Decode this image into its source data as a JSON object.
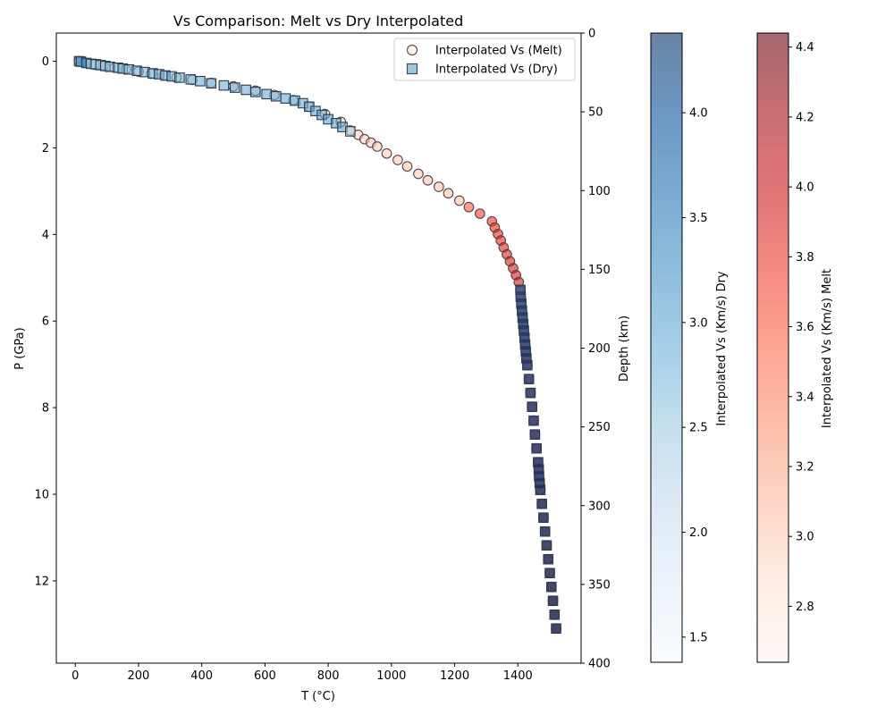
{
  "chart_data": {
    "type": "scatter",
    "title": "Vs Comparison: Melt vs Dry Interpolated",
    "xlabel": "T (°C)",
    "ylabel": "P (GPa)",
    "y2label": "Depth (km)",
    "xlim": [
      -60,
      1600
    ],
    "ylim": [
      13.9,
      -0.65
    ],
    "y2lim": [
      400,
      0
    ],
    "y2_per_y": 28.6,
    "xticks": [
      "0",
      "200",
      "400",
      "600",
      "800",
      "1000",
      "1200",
      "1400"
    ],
    "yticks": [
      "0",
      "2",
      "4",
      "6",
      "8",
      "10",
      "12"
    ],
    "y2ticks": [
      "0",
      "50",
      "100",
      "150",
      "200",
      "250",
      "300",
      "350",
      "400"
    ],
    "legend": {
      "position": "upper right",
      "entries": [
        "Interpolated Vs (Melt)",
        "Interpolated Vs (Dry)"
      ]
    },
    "colorbars": [
      {
        "label": "Interpolated Vs (Km/s) Dry",
        "colormap": "Blues",
        "range": [
          1.38,
          4.38
        ],
        "ticks": [
          "1.5",
          "2.0",
          "2.5",
          "3.0",
          "3.5",
          "4.0"
        ]
      },
      {
        "label": "Interpolated Vs (Km/s) Melt",
        "colormap": "Reds",
        "range": [
          2.64,
          4.44
        ],
        "ticks": [
          "2.8",
          "3.0",
          "3.2",
          "3.4",
          "3.6",
          "3.8",
          "4.0",
          "4.2",
          "4.4"
        ]
      }
    ],
    "series": [
      {
        "name": "Interpolated Vs (Melt)",
        "marker": "circle",
        "points": [
          [
            12,
            0.0,
            2.64
          ],
          [
            35,
            0.04,
            2.66
          ],
          [
            60,
            0.08,
            2.68
          ],
          [
            90,
            0.11,
            2.7
          ],
          [
            125,
            0.15,
            2.72
          ],
          [
            160,
            0.19,
            2.74
          ],
          [
            200,
            0.24,
            2.76
          ],
          [
            240,
            0.29,
            2.78
          ],
          [
            280,
            0.33,
            2.79
          ],
          [
            320,
            0.38,
            2.8
          ],
          [
            370,
            0.43,
            2.82
          ],
          [
            430,
            0.5,
            2.83
          ],
          [
            500,
            0.58,
            2.85
          ],
          [
            570,
            0.68,
            2.86
          ],
          [
            630,
            0.78,
            2.87
          ],
          [
            690,
            0.9,
            2.88
          ],
          [
            740,
            1.05,
            2.89
          ],
          [
            790,
            1.22,
            2.9
          ],
          [
            840,
            1.4,
            2.91
          ],
          [
            870,
            1.6,
            2.92
          ],
          [
            895,
            1.7,
            2.93
          ],
          [
            915,
            1.8,
            2.94
          ],
          [
            935,
            1.88,
            2.95
          ],
          [
            955,
            1.97,
            2.96
          ],
          [
            985,
            2.13,
            2.97
          ],
          [
            1020,
            2.28,
            2.98
          ],
          [
            1050,
            2.43,
            2.99
          ],
          [
            1085,
            2.6,
            3.0
          ],
          [
            1115,
            2.75,
            3.01
          ],
          [
            1150,
            2.9,
            3.02
          ],
          [
            1180,
            3.05,
            3.03
          ],
          [
            1215,
            3.22,
            3.05
          ],
          [
            1245,
            3.37,
            3.6
          ],
          [
            1280,
            3.52,
            3.75
          ],
          [
            1318,
            3.7,
            3.8
          ],
          [
            1327,
            3.84,
            3.82
          ],
          [
            1337,
            3.99,
            3.84
          ],
          [
            1346,
            4.14,
            3.86
          ],
          [
            1355,
            4.3,
            3.88
          ],
          [
            1365,
            4.46,
            3.9
          ],
          [
            1375,
            4.62,
            3.92
          ],
          [
            1385,
            4.78,
            3.94
          ],
          [
            1394,
            4.94,
            3.96
          ],
          [
            1403,
            5.1,
            3.98
          ],
          [
            1408,
            5.28,
            4.1
          ],
          [
            1409,
            5.44,
            4.12
          ],
          [
            1411,
            5.6,
            4.14
          ],
          [
            1413,
            5.76,
            4.16
          ],
          [
            1415,
            5.92,
            4.18
          ],
          [
            1417,
            6.07,
            4.2
          ],
          [
            1419,
            6.22,
            4.22
          ],
          [
            1421,
            6.38,
            4.24
          ],
          [
            1423,
            6.54,
            4.25
          ],
          [
            1425,
            6.7,
            4.26
          ],
          [
            1427,
            6.86,
            4.27
          ],
          [
            1430,
            7.02,
            4.28
          ],
          [
            1435,
            7.34,
            4.3
          ],
          [
            1440,
            7.66,
            4.31
          ],
          [
            1445,
            7.98,
            4.32
          ],
          [
            1450,
            8.3,
            4.33
          ],
          [
            1454,
            8.62,
            4.34
          ],
          [
            1459,
            8.94,
            4.35
          ],
          [
            1464,
            9.26,
            4.36
          ],
          [
            1466,
            9.42,
            4.36
          ],
          [
            1467,
            9.58,
            4.37
          ],
          [
            1469,
            9.74,
            4.37
          ],
          [
            1471,
            9.9,
            4.38
          ],
          [
            1476,
            10.22,
            4.39
          ],
          [
            1481,
            10.54,
            4.4
          ],
          [
            1486,
            10.86,
            4.4
          ],
          [
            1491,
            11.18,
            4.41
          ],
          [
            1496,
            11.5,
            4.41
          ],
          [
            1501,
            11.82,
            4.42
          ],
          [
            1506,
            12.14,
            4.42
          ],
          [
            1511,
            12.46,
            4.43
          ],
          [
            1516,
            12.78,
            4.43
          ],
          [
            1521,
            13.1,
            4.44
          ]
        ]
      },
      {
        "name": "Interpolated Vs (Dry)",
        "marker": "square",
        "points": [
          [
            12,
            0.0,
            3.35
          ],
          [
            18,
            0.01,
            3.3
          ],
          [
            35,
            0.04,
            3.25
          ],
          [
            50,
            0.06,
            2.6
          ],
          [
            65,
            0.07,
            2.55
          ],
          [
            80,
            0.09,
            2.6
          ],
          [
            95,
            0.11,
            2.65
          ],
          [
            110,
            0.13,
            2.7
          ],
          [
            135,
            0.15,
            2.7
          ],
          [
            150,
            0.17,
            2.72
          ],
          [
            170,
            0.19,
            2.74
          ],
          [
            195,
            0.22,
            2.76
          ],
          [
            220,
            0.25,
            2.78
          ],
          [
            245,
            0.28,
            2.8
          ],
          [
            265,
            0.3,
            2.8
          ],
          [
            285,
            0.33,
            2.82
          ],
          [
            305,
            0.35,
            2.83
          ],
          [
            330,
            0.38,
            2.84
          ],
          [
            365,
            0.42,
            2.85
          ],
          [
            395,
            0.46,
            2.86
          ],
          [
            430,
            0.51,
            2.87
          ],
          [
            470,
            0.56,
            2.88
          ],
          [
            505,
            0.61,
            2.88
          ],
          [
            540,
            0.66,
            2.89
          ],
          [
            570,
            0.71,
            2.9
          ],
          [
            605,
            0.76,
            2.9
          ],
          [
            635,
            0.81,
            2.91
          ],
          [
            665,
            0.86,
            2.92
          ],
          [
            695,
            0.91,
            2.92
          ],
          [
            720,
            0.97,
            2.93
          ],
          [
            740,
            1.05,
            2.94
          ],
          [
            760,
            1.15,
            2.95
          ],
          [
            780,
            1.24,
            2.96
          ],
          [
            800,
            1.34,
            2.97
          ],
          [
            825,
            1.43,
            2.98
          ],
          [
            845,
            1.52,
            2.99
          ],
          [
            870,
            1.62,
            2.4
          ],
          [
            1408,
            5.28,
            4.05
          ],
          [
            1409,
            5.44,
            4.08
          ],
          [
            1411,
            5.6,
            4.1
          ],
          [
            1413,
            5.76,
            4.12
          ],
          [
            1415,
            5.92,
            4.14
          ],
          [
            1417,
            6.07,
            4.16
          ],
          [
            1419,
            6.22,
            4.18
          ],
          [
            1421,
            6.38,
            4.2
          ],
          [
            1423,
            6.54,
            4.21
          ],
          [
            1425,
            6.7,
            4.22
          ],
          [
            1427,
            6.86,
            4.23
          ],
          [
            1430,
            7.02,
            4.24
          ],
          [
            1435,
            7.34,
            4.25
          ],
          [
            1440,
            7.66,
            4.26
          ],
          [
            1445,
            7.98,
            4.27
          ],
          [
            1450,
            8.3,
            4.28
          ],
          [
            1454,
            8.62,
            4.29
          ],
          [
            1459,
            8.94,
            4.3
          ],
          [
            1464,
            9.26,
            4.31
          ],
          [
            1466,
            9.42,
            4.31
          ],
          [
            1467,
            9.58,
            4.32
          ],
          [
            1469,
            9.74,
            4.32
          ],
          [
            1471,
            9.9,
            4.33
          ],
          [
            1476,
            10.22,
            4.34
          ],
          [
            1481,
            10.54,
            4.34
          ],
          [
            1486,
            10.86,
            4.35
          ],
          [
            1491,
            11.18,
            4.35
          ],
          [
            1496,
            11.5,
            4.36
          ],
          [
            1501,
            11.82,
            4.36
          ],
          [
            1506,
            12.14,
            4.37
          ],
          [
            1511,
            12.46,
            4.37
          ],
          [
            1516,
            12.78,
            4.38
          ],
          [
            1521,
            13.1,
            4.38
          ]
        ]
      }
    ]
  }
}
